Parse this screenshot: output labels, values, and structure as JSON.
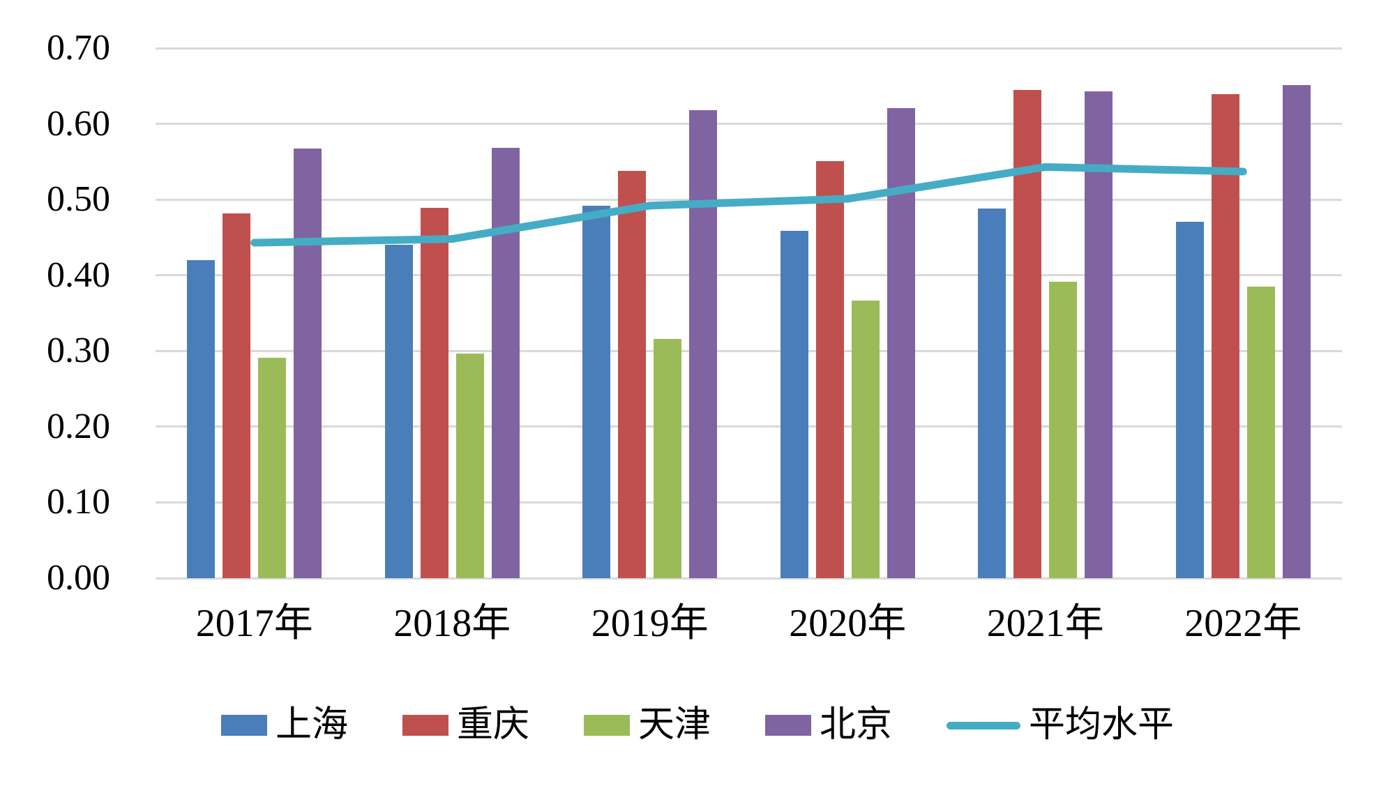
{
  "chart_data": {
    "type": "bar",
    "subtype": "grouped-bar-with-line-overlay",
    "title": "",
    "xlabel": "",
    "ylabel": "",
    "categories": [
      "2017年",
      "2018年",
      "2019年",
      "2020年",
      "2021年",
      "2022年"
    ],
    "series": [
      {
        "name": "上海",
        "type": "bar",
        "color": "#4A7EBB",
        "values": [
          0.42,
          0.44,
          0.492,
          0.459,
          0.488,
          0.471
        ]
      },
      {
        "name": "重庆",
        "type": "bar",
        "color": "#C0504D",
        "values": [
          0.482,
          0.489,
          0.538,
          0.551,
          0.645,
          0.639
        ]
      },
      {
        "name": "天津",
        "type": "bar",
        "color": "#9BBB59",
        "values": [
          0.291,
          0.297,
          0.316,
          0.367,
          0.391,
          0.385
        ]
      },
      {
        "name": "北京",
        "type": "bar",
        "color": "#8064A2",
        "values": [
          0.567,
          0.568,
          0.618,
          0.621,
          0.643,
          0.651
        ]
      },
      {
        "name": "平均水平",
        "type": "line",
        "color": "#45ACC5",
        "values": [
          0.443,
          0.448,
          0.492,
          0.501,
          0.543,
          0.537
        ]
      }
    ],
    "ylim": [
      0.0,
      0.7
    ],
    "ytick_step": 0.1,
    "y_tick_labels": [
      "0.00",
      "0.10",
      "0.20",
      "0.30",
      "0.40",
      "0.50",
      "0.60",
      "0.70"
    ],
    "grid": true,
    "gridline_color": "#D9D9D9",
    "background_color": "#FFFFFF",
    "text_color": "#000000",
    "legend_position": "bottom"
  }
}
